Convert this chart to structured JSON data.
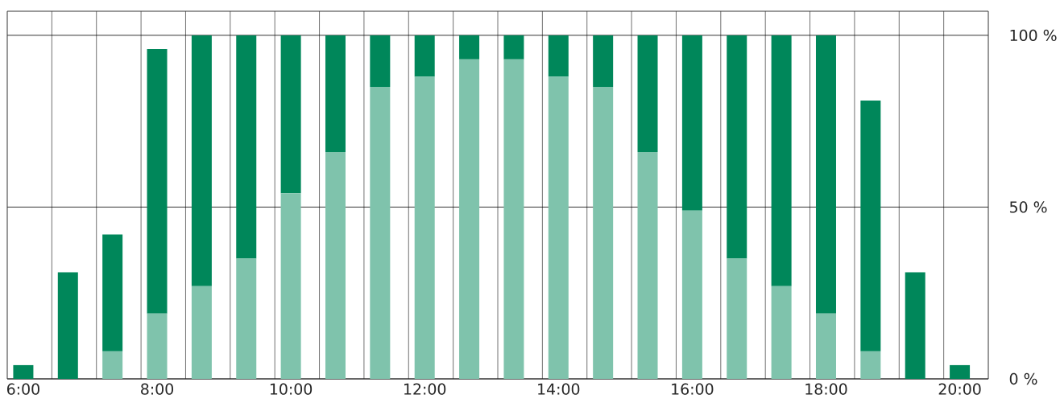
{
  "chart_data": {
    "type": "bar",
    "stacked": true,
    "grid": true,
    "categories": [
      "6:00",
      null,
      null,
      "8:00",
      null,
      null,
      "10:00",
      null,
      null,
      "12:00",
      null,
      null,
      "14:00",
      null,
      null,
      "16:00",
      null,
      null,
      "18:00",
      null,
      null,
      "20:00"
    ],
    "series": [
      {
        "color": "#7fc3ac",
        "values": [
          0,
          0,
          8,
          19,
          27,
          35,
          54,
          66,
          85,
          88,
          93,
          93,
          88,
          85,
          66,
          49,
          35,
          27,
          19,
          8,
          0,
          0
        ]
      },
      {
        "color": "#00875a",
        "values": [
          4,
          31,
          34,
          77,
          73,
          65,
          46,
          34,
          15,
          12,
          7,
          7,
          12,
          15,
          34,
          51,
          65,
          73,
          81,
          73,
          31,
          4
        ]
      }
    ],
    "ylim": [
      0,
      107
    ],
    "yticks": [
      {
        "value": 0,
        "label": "0 %"
      },
      {
        "value": 50,
        "label": "50 %"
      },
      {
        "value": 100,
        "label": "100 %"
      }
    ]
  }
}
